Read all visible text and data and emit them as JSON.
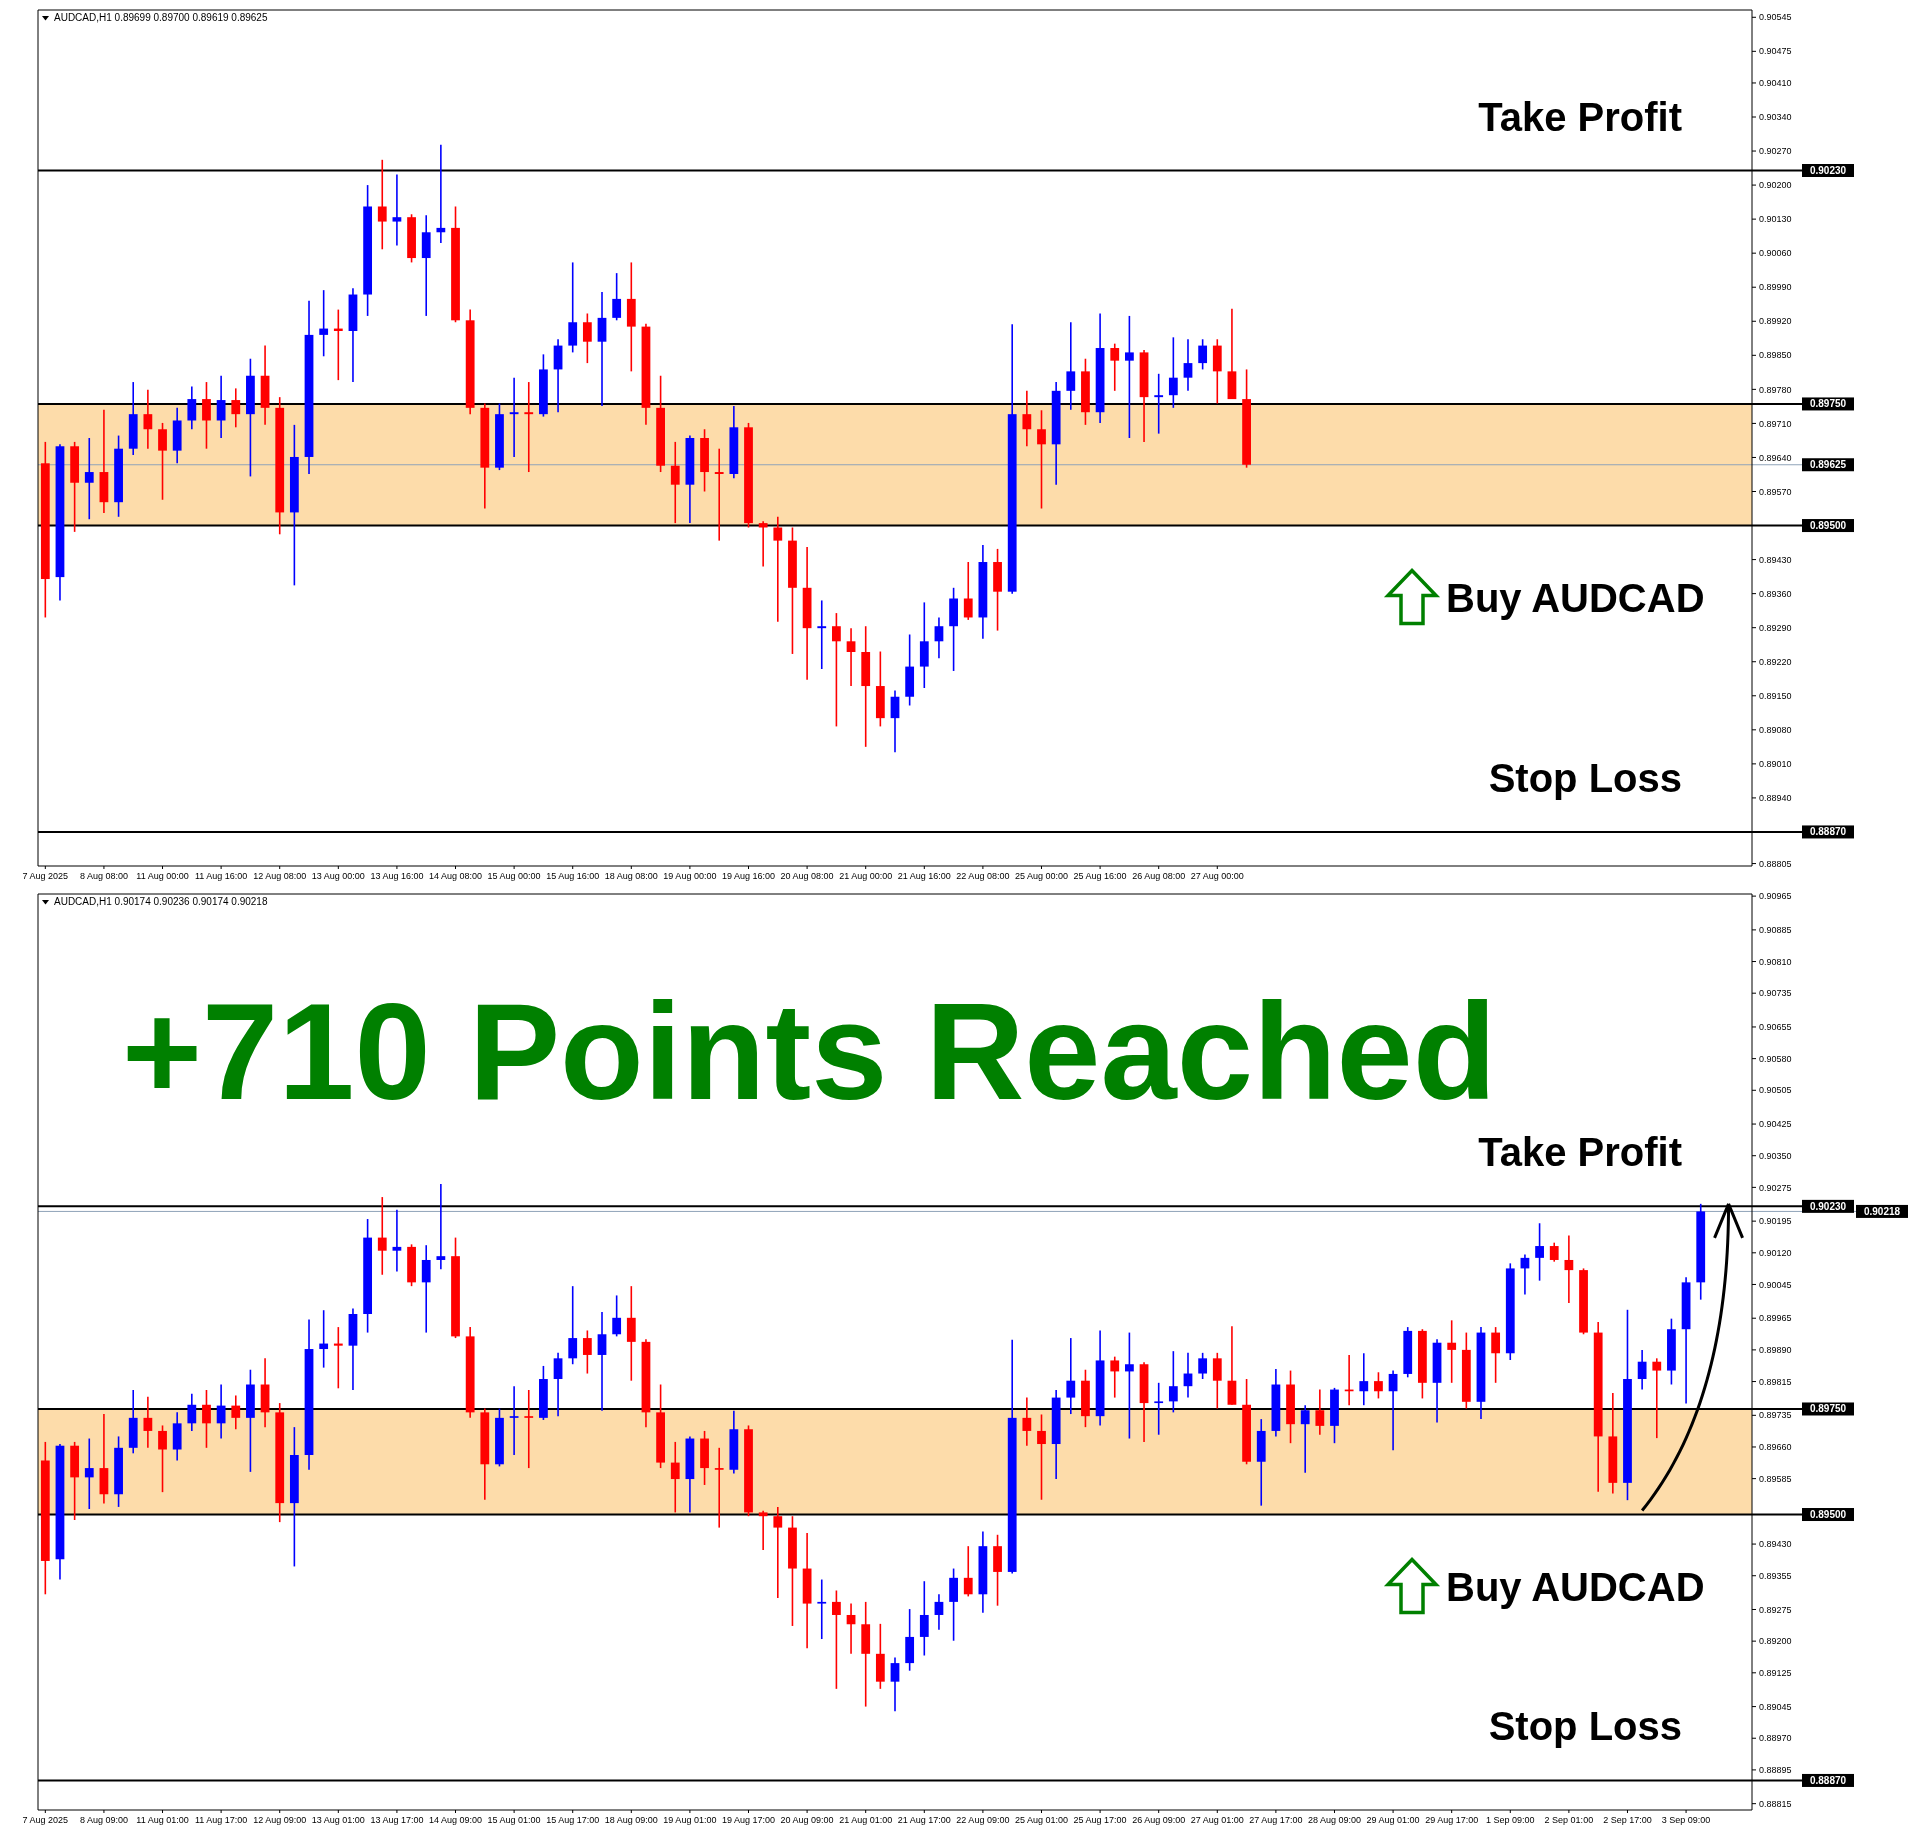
{
  "chart_data": [
    {
      "type": "candlestick",
      "title": "AUDCAD,H1 0.89699 0.89700 0.89619 0.89625",
      "categories": [
        "7 Aug 2025",
        null,
        null,
        null,
        "8 Aug 08:00",
        null,
        null,
        null,
        "11 Aug 00:00",
        null,
        null,
        null,
        "11 Aug 16:00",
        null,
        null,
        null,
        "12 Aug 08:00",
        null,
        null,
        null,
        "13 Aug 00:00",
        null,
        null,
        null,
        "13 Aug 16:00",
        null,
        null,
        null,
        "14 Aug 08:00",
        null,
        null,
        null,
        "15 Aug 00:00",
        null,
        null,
        null,
        "15 Aug 16:00",
        null,
        null,
        null,
        "18 Aug 08:00",
        null,
        null,
        null,
        "19 Aug 00:00",
        null,
        null,
        null,
        "19 Aug 16:00",
        null,
        null,
        null,
        "20 Aug 08:00",
        null,
        null,
        null,
        "21 Aug 00:00",
        null,
        null,
        null,
        "21 Aug 16:00",
        null,
        null,
        null,
        "22 Aug 08:00",
        null,
        null,
        null,
        "25 Aug 00:00",
        null,
        null,
        null,
        "25 Aug 16:00",
        null,
        null,
        null,
        "26 Aug 08:00",
        null,
        null,
        null,
        "27 Aug 00:00",
        null,
        null,
        null,
        null,
        null,
        null,
        null,
        null,
        null,
        null,
        null,
        null,
        null,
        null,
        null,
        null,
        null,
        null,
        null,
        null,
        null,
        null,
        null,
        null,
        null,
        null,
        null,
        null,
        null,
        null,
        null,
        null,
        null,
        null,
        null,
        null
      ],
      "ohlc": [
        [
          0.89628,
          0.89672,
          0.89311,
          0.8939
        ],
        [
          0.89394,
          0.89667,
          0.89346,
          0.89663
        ],
        [
          0.89663,
          0.89672,
          0.89487,
          0.89588
        ],
        [
          0.89588,
          0.8968,
          0.89513,
          0.8961
        ],
        [
          0.8961,
          0.89738,
          0.89526,
          0.89548
        ],
        [
          0.89548,
          0.89685,
          0.89518,
          0.89658
        ],
        [
          0.89658,
          0.89795,
          0.89645,
          0.89729
        ],
        [
          0.89729,
          0.89779,
          0.89658,
          0.89698
        ],
        [
          0.89698,
          0.89711,
          0.89553,
          0.89654
        ],
        [
          0.89654,
          0.89742,
          0.89628,
          0.89716
        ],
        [
          0.89716,
          0.89786,
          0.89698,
          0.8976
        ],
        [
          0.8976,
          0.89795,
          0.89658,
          0.89716
        ],
        [
          0.89716,
          0.89808,
          0.8968,
          0.89758
        ],
        [
          0.89758,
          0.89782,
          0.89702,
          0.89729
        ],
        [
          0.89729,
          0.89843,
          0.89601,
          0.89808
        ],
        [
          0.89808,
          0.8987,
          0.89707,
          0.89742
        ],
        [
          0.89742,
          0.89764,
          0.89482,
          0.89527
        ],
        [
          0.89527,
          0.89707,
          0.89377,
          0.89641
        ],
        [
          0.89641,
          0.89962,
          0.89606,
          0.89892
        ],
        [
          0.89892,
          0.89984,
          0.89848,
          0.89905
        ],
        [
          0.89905,
          0.89944,
          0.89799,
          0.899
        ],
        [
          0.899,
          0.89988,
          0.89795,
          0.89975
        ],
        [
          0.89975,
          0.902,
          0.89931,
          0.90156
        ],
        [
          0.90156,
          0.90252,
          0.90068,
          0.90125
        ],
        [
          0.90125,
          0.90222,
          0.90076,
          0.90134
        ],
        [
          0.90134,
          0.9014,
          0.90041,
          0.9005
        ],
        [
          0.9005,
          0.90138,
          0.89931,
          0.90103
        ],
        [
          0.90103,
          0.90283,
          0.90081,
          0.90112
        ],
        [
          0.90112,
          0.90156,
          0.89918,
          0.89922
        ],
        [
          0.89922,
          0.89944,
          0.89729,
          0.89742
        ],
        [
          0.89742,
          0.89751,
          0.89535,
          0.89619
        ],
        [
          0.89619,
          0.89751,
          0.89614,
          0.89729
        ],
        [
          0.89729,
          0.89804,
          0.89641,
          0.89733
        ],
        [
          0.89733,
          0.89795,
          0.8961,
          0.89729
        ],
        [
          0.89729,
          0.89852,
          0.89724,
          0.89821
        ],
        [
          0.89821,
          0.89883,
          0.89733,
          0.8987
        ],
        [
          0.8987,
          0.90041,
          0.89856,
          0.89918
        ],
        [
          0.89918,
          0.89936,
          0.89834,
          0.89878
        ],
        [
          0.89878,
          0.8998,
          0.89746,
          0.89927
        ],
        [
          0.89927,
          0.90019,
          0.89922,
          0.89966
        ],
        [
          0.89966,
          0.90041,
          0.89817,
          0.89909
        ],
        [
          0.89909,
          0.89915,
          0.89707,
          0.89742
        ],
        [
          0.89742,
          0.89808,
          0.8961,
          0.89623
        ],
        [
          0.89623,
          0.89672,
          0.89505,
          0.89584
        ],
        [
          0.89584,
          0.89685,
          0.89505,
          0.8968
        ],
        [
          0.8968,
          0.89698,
          0.8957,
          0.8961
        ],
        [
          0.8961,
          0.89658,
          0.89469,
          0.89606
        ],
        [
          0.89606,
          0.89746,
          0.89597,
          0.89702
        ],
        [
          0.89702,
          0.89711,
          0.89496,
          0.89505
        ],
        [
          0.89505,
          0.89509,
          0.89416,
          0.89496
        ],
        [
          0.89496,
          0.89518,
          0.89302,
          0.89469
        ],
        [
          0.89469,
          0.89496,
          0.89236,
          0.89372
        ],
        [
          0.89372,
          0.89456,
          0.89183,
          0.89289
        ],
        [
          0.89289,
          0.89346,
          0.89205,
          0.89293
        ],
        [
          0.89293,
          0.8932,
          0.89087,
          0.89262
        ],
        [
          0.89262,
          0.89289,
          0.8917,
          0.8924
        ],
        [
          0.8924,
          0.89293,
          0.89045,
          0.8917
        ],
        [
          0.8917,
          0.89241,
          0.89087,
          0.89104
        ],
        [
          0.89104,
          0.89161,
          0.89034,
          0.89148
        ],
        [
          0.89148,
          0.89276,
          0.8913,
          0.8921
        ],
        [
          0.8921,
          0.89342,
          0.89166,
          0.89262
        ],
        [
          0.89262,
          0.89311,
          0.89227,
          0.89293
        ],
        [
          0.89293,
          0.89372,
          0.89201,
          0.8935
        ],
        [
          0.8935,
          0.89425,
          0.89306,
          0.89311
        ],
        [
          0.89311,
          0.8946,
          0.89267,
          0.89425
        ],
        [
          0.89425,
          0.89452,
          0.89284,
          0.89364
        ],
        [
          0.89364,
          0.89914,
          0.8936,
          0.89729
        ],
        [
          0.89729,
          0.89777,
          0.89663,
          0.89698
        ],
        [
          0.89698,
          0.89737,
          0.89535,
          0.89667
        ],
        [
          0.89667,
          0.89795,
          0.89584,
          0.89777
        ],
        [
          0.89777,
          0.89918,
          0.89738,
          0.89817
        ],
        [
          0.89817,
          0.89843,
          0.89707,
          0.89733
        ],
        [
          0.89733,
          0.89936,
          0.89711,
          0.89865
        ],
        [
          0.89865,
          0.89874,
          0.89777,
          0.89839
        ],
        [
          0.89839,
          0.89931,
          0.8968,
          0.89856
        ],
        [
          0.89856,
          0.89861,
          0.89672,
          0.89764
        ],
        [
          0.89764,
          0.89812,
          0.89689,
          0.89768
        ],
        [
          0.89768,
          0.89887,
          0.89742,
          0.89804
        ],
        [
          0.89804,
          0.89883,
          0.89777,
          0.89834
        ],
        [
          0.89834,
          0.89883,
          0.89821,
          0.8987
        ],
        [
          0.8987,
          0.89883,
          0.89751,
          0.89817
        ],
        [
          0.89817,
          0.89946,
          0.8976,
          0.8976
        ],
        [
          0.8976,
          0.89821,
          0.89619,
          0.89625
        ],
        null,
        null,
        null,
        null,
        null,
        null,
        null,
        null,
        null,
        null,
        null,
        null,
        null,
        null,
        null,
        null,
        null,
        null,
        null,
        null,
        null,
        null,
        null,
        null,
        null,
        null,
        null,
        null,
        null,
        null,
        null,
        null,
        null,
        null
      ],
      "ylim": [
        0.888,
        0.9056
      ],
      "yticks": [
        0.90545,
        0.90475,
        {
          "value": 0.9041,
          "label": "0.90410"
        },
        {
          "value": 0.9034,
          "label": "0.90340"
        },
        {
          "value": 0.9027,
          "label": "0.90270"
        },
        {
          "value": 0.902,
          "label": "0.90200"
        },
        {
          "value": 0.9013,
          "label": "0.90130"
        },
        {
          "value": 0.9006,
          "label": "0.90060"
        },
        {
          "value": 0.8999,
          "label": "0.89990"
        },
        {
          "value": 0.8992,
          "label": "0.89920"
        },
        {
          "value": 0.8985,
          "label": "0.89850"
        },
        {
          "value": 0.8978,
          "label": "0.89780"
        },
        {
          "value": 0.8971,
          "label": "0.89710"
        },
        {
          "value": 0.8964,
          "label": "0.89640"
        },
        {
          "value": 0.8957,
          "label": "0.89570"
        },
        {
          "value": 0.8943,
          "label": "0.89430"
        },
        {
          "value": 0.8936,
          "label": "0.89360"
        },
        {
          "value": 0.8929,
          "label": "0.89290"
        },
        {
          "value": 0.8922,
          "label": "0.89220"
        },
        {
          "value": 0.8915,
          "label": "0.89150"
        },
        {
          "value": 0.8908,
          "label": "0.89080"
        },
        {
          "value": 0.8901,
          "label": "0.89010"
        },
        {
          "value": 0.8894,
          "label": "0.88940"
        },
        0.88805
      ],
      "ref_lines": [
        {
          "axis": "y",
          "value": 0.9023,
          "label": "0.90230"
        },
        {
          "axis": "y",
          "value": 0.8975,
          "label": "0.89750"
        },
        {
          "axis": "y",
          "value": 0.89625,
          "label": "0.89625",
          "color": "#8fa3b8"
        },
        {
          "axis": "y",
          "value": 0.895,
          "label": "0.89500"
        },
        {
          "axis": "y",
          "value": 0.8887,
          "label": "0.88870"
        }
      ],
      "bands": [
        {
          "axis": "y",
          "from": 0.895,
          "to": 0.8975,
          "label": "Buy AUDCAD",
          "color": "#fddcaa"
        }
      ],
      "annotations": [
        {
          "text": "Take Profit",
          "y": 0.9023
        },
        {
          "text": "Stop Loss",
          "y": 0.8887
        }
      ]
    },
    {
      "type": "candlestick",
      "title": "AUDCAD,H1 0.90174 0.90236 0.90174 0.90218",
      "categories": [
        "7 Aug 2025",
        null,
        null,
        null,
        "8 Aug 09:00",
        null,
        null,
        null,
        "11 Aug 01:00",
        null,
        null,
        null,
        "11 Aug 17:00",
        null,
        null,
        null,
        "12 Aug 09:00",
        null,
        null,
        null,
        "13 Aug 01:00",
        null,
        null,
        null,
        "13 Aug 17:00",
        null,
        null,
        null,
        "14 Aug 09:00",
        null,
        null,
        null,
        "15 Aug 01:00",
        null,
        null,
        null,
        "15 Aug 17:00",
        null,
        null,
        null,
        "18 Aug 09:00",
        null,
        null,
        null,
        "19 Aug 01:00",
        null,
        null,
        null,
        "19 Aug 17:00",
        null,
        null,
        null,
        "20 Aug 09:00",
        null,
        null,
        null,
        "21 Aug 01:00",
        null,
        null,
        null,
        "21 Aug 17:00",
        null,
        null,
        null,
        "22 Aug 09:00",
        null,
        null,
        null,
        "25 Aug 01:00",
        null,
        null,
        null,
        "25 Aug 17:00",
        null,
        null,
        null,
        "26 Aug 09:00",
        null,
        null,
        null,
        "27 Aug 01:00",
        null,
        null,
        null,
        "27 Aug 17:00",
        null,
        null,
        null,
        "28 Aug 09:00",
        null,
        null,
        null,
        "29 Aug 01:00",
        null,
        null,
        null,
        "29 Aug 17:00",
        null,
        null,
        null,
        "1 Sep 09:00",
        null,
        null,
        null,
        "2 Sep 01:00",
        null,
        null,
        null,
        "2 Sep 17:00",
        null,
        null,
        null,
        "3 Sep 09:00",
        null,
        null,
        null,
        null
      ],
      "ohlc": [
        [
          0.89628,
          0.89672,
          0.89311,
          0.8939
        ],
        [
          0.89394,
          0.89667,
          0.89346,
          0.89663
        ],
        [
          0.89663,
          0.89672,
          0.89487,
          0.89588
        ],
        [
          0.89588,
          0.8968,
          0.89513,
          0.8961
        ],
        [
          0.8961,
          0.89738,
          0.89526,
          0.89548
        ],
        [
          0.89548,
          0.89685,
          0.89518,
          0.89658
        ],
        [
          0.89658,
          0.89795,
          0.89645,
          0.89729
        ],
        [
          0.89729,
          0.89779,
          0.89658,
          0.89698
        ],
        [
          0.89698,
          0.89711,
          0.89553,
          0.89654
        ],
        [
          0.89654,
          0.89742,
          0.89628,
          0.89716
        ],
        [
          0.89716,
          0.89786,
          0.89698,
          0.8976
        ],
        [
          0.8976,
          0.89795,
          0.89658,
          0.89716
        ],
        [
          0.89716,
          0.89808,
          0.8968,
          0.89758
        ],
        [
          0.89758,
          0.89782,
          0.89702,
          0.89729
        ],
        [
          0.89729,
          0.89843,
          0.89601,
          0.89808
        ],
        [
          0.89808,
          0.8987,
          0.89707,
          0.89742
        ],
        [
          0.89742,
          0.89764,
          0.89482,
          0.89527
        ],
        [
          0.89527,
          0.89707,
          0.89377,
          0.89641
        ],
        [
          0.89641,
          0.89962,
          0.89606,
          0.89892
        ],
        [
          0.89892,
          0.89984,
          0.89848,
          0.89905
        ],
        [
          0.89905,
          0.89944,
          0.89799,
          0.899
        ],
        [
          0.899,
          0.89988,
          0.89795,
          0.89975
        ],
        [
          0.89975,
          0.902,
          0.89931,
          0.90156
        ],
        [
          0.90156,
          0.90252,
          0.90068,
          0.90125
        ],
        [
          0.90125,
          0.90222,
          0.90076,
          0.90134
        ],
        [
          0.90134,
          0.9014,
          0.90041,
          0.9005
        ],
        [
          0.9005,
          0.90138,
          0.89931,
          0.90103
        ],
        [
          0.90103,
          0.90283,
          0.90081,
          0.90112
        ],
        [
          0.90112,
          0.90156,
          0.89918,
          0.89922
        ],
        [
          0.89922,
          0.89944,
          0.89729,
          0.89742
        ],
        [
          0.89742,
          0.89751,
          0.89535,
          0.89619
        ],
        [
          0.89619,
          0.89751,
          0.89614,
          0.89729
        ],
        [
          0.89729,
          0.89804,
          0.89641,
          0.89733
        ],
        [
          0.89733,
          0.89795,
          0.8961,
          0.89729
        ],
        [
          0.89729,
          0.89852,
          0.89724,
          0.89821
        ],
        [
          0.89821,
          0.89883,
          0.89733,
          0.8987
        ],
        [
          0.8987,
          0.90041,
          0.89856,
          0.89918
        ],
        [
          0.89918,
          0.89936,
          0.89834,
          0.89878
        ],
        [
          0.89878,
          0.8998,
          0.89746,
          0.89927
        ],
        [
          0.89927,
          0.90019,
          0.89922,
          0.89966
        ],
        [
          0.89966,
          0.90041,
          0.89817,
          0.89909
        ],
        [
          0.89909,
          0.89915,
          0.89707,
          0.89742
        ],
        [
          0.89742,
          0.89808,
          0.8961,
          0.89623
        ],
        [
          0.89623,
          0.89672,
          0.89505,
          0.89584
        ],
        [
          0.89584,
          0.89685,
          0.89505,
          0.8968
        ],
        [
          0.8968,
          0.89698,
          0.8957,
          0.8961
        ],
        [
          0.8961,
          0.89658,
          0.89469,
          0.89606
        ],
        [
          0.89606,
          0.89746,
          0.89597,
          0.89702
        ],
        [
          0.89702,
          0.89711,
          0.89496,
          0.89505
        ],
        [
          0.89505,
          0.89509,
          0.89416,
          0.89496
        ],
        [
          0.89496,
          0.89518,
          0.89302,
          0.89469
        ],
        [
          0.89469,
          0.89496,
          0.89236,
          0.89372
        ],
        [
          0.89372,
          0.89456,
          0.89183,
          0.89289
        ],
        [
          0.89289,
          0.89346,
          0.89205,
          0.89293
        ],
        [
          0.89293,
          0.8932,
          0.89087,
          0.89262
        ],
        [
          0.89262,
          0.89289,
          0.8917,
          0.8924
        ],
        [
          0.8924,
          0.89293,
          0.89045,
          0.8917
        ],
        [
          0.8917,
          0.89241,
          0.89087,
          0.89104
        ],
        [
          0.89104,
          0.89161,
          0.89034,
          0.89148
        ],
        [
          0.89148,
          0.89276,
          0.8913,
          0.8921
        ],
        [
          0.8921,
          0.89342,
          0.89166,
          0.89262
        ],
        [
          0.89262,
          0.89311,
          0.89227,
          0.89293
        ],
        [
          0.89293,
          0.89372,
          0.89201,
          0.8935
        ],
        [
          0.8935,
          0.89425,
          0.89306,
          0.89311
        ],
        [
          0.89311,
          0.8946,
          0.89267,
          0.89425
        ],
        [
          0.89425,
          0.89452,
          0.89284,
          0.89364
        ],
        [
          0.89364,
          0.89914,
          0.8936,
          0.89729
        ],
        [
          0.89729,
          0.89777,
          0.89663,
          0.89698
        ],
        [
          0.89698,
          0.89737,
          0.89535,
          0.89667
        ],
        [
          0.89667,
          0.89795,
          0.89584,
          0.89777
        ],
        [
          0.89777,
          0.89918,
          0.89738,
          0.89817
        ],
        [
          0.89817,
          0.89843,
          0.89707,
          0.89733
        ],
        [
          0.89733,
          0.89936,
          0.89711,
          0.89865
        ],
        [
          0.89865,
          0.89874,
          0.89777,
          0.89839
        ],
        [
          0.89839,
          0.89931,
          0.8968,
          0.89856
        ],
        [
          0.89856,
          0.89861,
          0.89672,
          0.89764
        ],
        [
          0.89764,
          0.89812,
          0.89689,
          0.89768
        ],
        [
          0.89768,
          0.89887,
          0.89742,
          0.89804
        ],
        [
          0.89804,
          0.89883,
          0.89777,
          0.89834
        ],
        [
          0.89834,
          0.89883,
          0.89821,
          0.8987
        ],
        [
          0.8987,
          0.89883,
          0.89751,
          0.89817
        ],
        [
          0.89817,
          0.89946,
          0.8976,
          0.8976
        ],
        [
          0.8976,
          0.89821,
          0.89619,
          0.89625
        ],
        [
          0.89625,
          0.89726,
          0.89521,
          0.89698
        ],
        [
          0.89698,
          0.89845,
          0.89685,
          0.89808
        ],
        [
          0.89808,
          0.89841,
          0.89669,
          0.89714
        ],
        [
          0.89714,
          0.89759,
          0.89599,
          0.89747
        ],
        [
          0.89747,
          0.89796,
          0.89689,
          0.8971
        ],
        [
          0.8971,
          0.898,
          0.89669,
          0.89796
        ],
        [
          0.89796,
          0.89878,
          0.89759,
          0.89792
        ],
        [
          0.89792,
          0.89882,
          0.89759,
          0.89816
        ],
        [
          0.89816,
          0.89837,
          0.89775,
          0.89792
        ],
        [
          0.89792,
          0.89841,
          0.89652,
          0.89833
        ],
        [
          0.89833,
          0.89944,
          0.89825,
          0.89935
        ],
        [
          0.89935,
          0.89939,
          0.89775,
          0.89812
        ],
        [
          0.89812,
          0.89915,
          0.89718,
          0.89907
        ],
        [
          0.89907,
          0.8996,
          0.89812,
          0.8989
        ],
        [
          0.8989,
          0.89931,
          0.89751,
          0.89767
        ],
        [
          0.89767,
          0.89944,
          0.89726,
          0.89931
        ],
        [
          0.89931,
          0.89944,
          0.89812,
          0.89882
        ],
        [
          0.89882,
          0.90095,
          0.89866,
          0.90083
        ],
        [
          0.90083,
          0.90116,
          0.90021,
          0.90108
        ],
        [
          0.90108,
          0.9019,
          0.90054,
          0.90136
        ],
        [
          0.90136,
          0.90144,
          0.90099,
          0.90103
        ],
        [
          0.90103,
          0.90161,
          0.90001,
          0.90079
        ],
        [
          0.90079,
          0.90083,
          0.89927,
          0.89931
        ],
        [
          0.89931,
          0.89956,
          0.89554,
          0.89685
        ],
        [
          0.89685,
          0.89788,
          0.8955,
          0.89575
        ],
        [
          0.89575,
          0.89985,
          0.89534,
          0.89821
        ],
        [
          0.89821,
          0.8989,
          0.89796,
          0.89862
        ],
        [
          0.89862,
          0.8987,
          0.89681,
          0.89841
        ],
        [
          0.89841,
          0.89964,
          0.89808,
          0.89939
        ],
        [
          0.89939,
          0.90062,
          0.89763,
          0.9005
        ],
        [
          0.9005,
          0.90236,
          0.90009,
          0.90218
        ],
        null,
        null,
        null
      ],
      "ylim": [
        0.888,
        0.9097
      ],
      "yticks": [
        0.90965,
        0.90885,
        {
          "value": 0.9081,
          "label": "0.90810"
        },
        0.90735,
        0.90655,
        {
          "value": 0.9058,
          "label": "0.90580"
        },
        0.90505,
        0.90425,
        {
          "value": 0.9035,
          "label": "0.90350"
        },
        0.90275,
        0.90195,
        {
          "value": 0.9012,
          "label": "0.90120"
        },
        0.90045,
        0.89965,
        {
          "value": 0.8989,
          "label": "0.89890"
        },
        0.89815,
        0.89735,
        {
          "value": 0.8966,
          "label": "0.89660"
        },
        0.89585,
        {
          "value": 0.8943,
          "label": "0.89430"
        },
        0.89355,
        0.89275,
        {
          "value": 0.892,
          "label": "0.89200"
        },
        0.89125,
        0.89045,
        {
          "value": 0.8897,
          "label": "0.88970"
        },
        0.88895,
        0.88815
      ],
      "ref_lines": [
        {
          "axis": "y",
          "value": 0.9023,
          "label": "0.90230"
        },
        {
          "axis": "y",
          "value": 0.90218,
          "label": "0.90218",
          "color": "#8fa3b8"
        },
        {
          "axis": "y",
          "value": 0.8975,
          "label": "0.89750"
        },
        {
          "axis": "y",
          "value": 0.895,
          "label": "0.89500"
        },
        {
          "axis": "y",
          "value": 0.8887,
          "label": "0.88870"
        }
      ],
      "bands": [
        {
          "axis": "y",
          "from": 0.895,
          "to": 0.8975,
          "label": "Buy AUDCAD",
          "color": "#fddcaa"
        }
      ],
      "annotations": [
        "+710 Points Reached",
        {
          "text": "Take Profit",
          "y": 0.9023
        },
        {
          "text": "Stop Loss",
          "y": 0.8887
        }
      ]
    }
  ]
}
